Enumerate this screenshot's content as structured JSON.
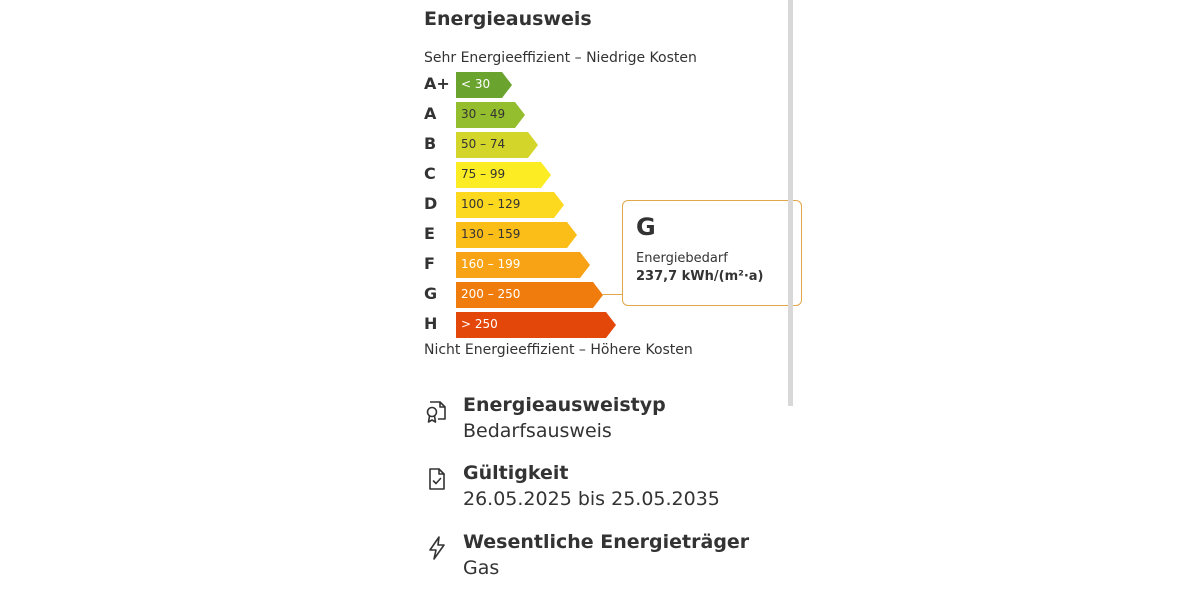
{
  "header": {
    "title": "Energieausweis"
  },
  "scale": {
    "top_label": "Sehr Energieeffizient – Niedrige Kosten",
    "bottom_label": "Nicht Energieeffizient – Höhere Kosten",
    "classes": [
      {
        "letter": "A+",
        "range": "< 30",
        "color": "#6aa42f",
        "text_color": "#ffffff"
      },
      {
        "letter": "A",
        "range": "30 – 49",
        "color": "#95be2e",
        "text_color": "#333333"
      },
      {
        "letter": "B",
        "range": "50 – 74",
        "color": "#d4d52a",
        "text_color": "#333333"
      },
      {
        "letter": "C",
        "range": "75 – 99",
        "color": "#fbec23",
        "text_color": "#333333"
      },
      {
        "letter": "D",
        "range": "100 – 129",
        "color": "#fcd81f",
        "text_color": "#333333"
      },
      {
        "letter": "E",
        "range": "130 – 159",
        "color": "#fbbd18",
        "text_color": "#333333"
      },
      {
        "letter": "F",
        "range": "160 – 199",
        "color": "#f8a215",
        "text_color": "#ffffff"
      },
      {
        "letter": "G",
        "range": "200 – 250",
        "color": "#f07c0e",
        "text_color": "#ffffff"
      },
      {
        "letter": "H",
        "range": "> 250",
        "color": "#e34709",
        "text_color": "#ffffff"
      }
    ]
  },
  "result": {
    "class": "G",
    "label": "Energiebedarf",
    "value": "237,7 kWh/(m²·a)"
  },
  "info": [
    {
      "icon": "certificate-icon",
      "title": "Energieausweistyp",
      "value": "Bedarfsausweis"
    },
    {
      "icon": "document-check-icon",
      "title": "Gültigkeit",
      "value": "26.05.2025 bis 25.05.2035"
    },
    {
      "icon": "lightning-icon",
      "title": "Wesentliche Energieträger",
      "value": "Gas"
    }
  ]
}
